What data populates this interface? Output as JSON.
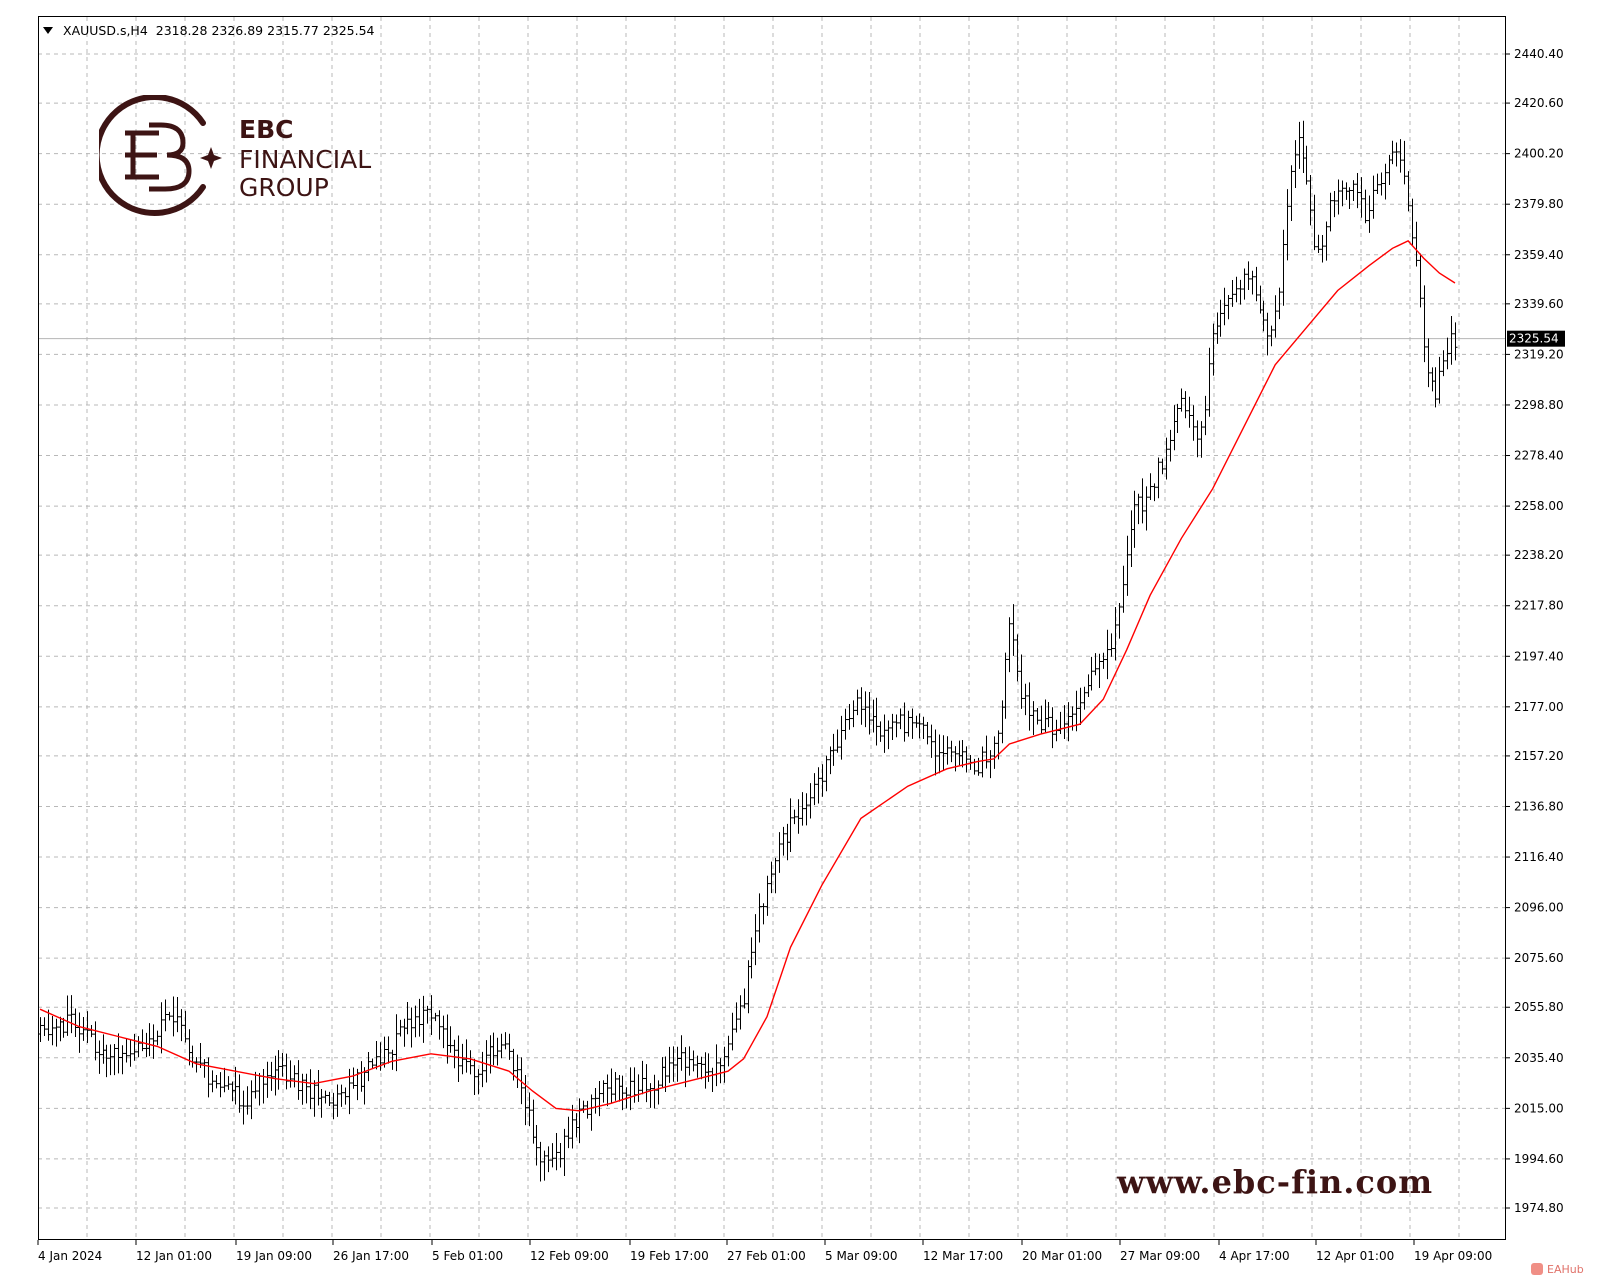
{
  "header": {
    "symbol": "XAUUSD.s,H4",
    "open": "2318.28",
    "high": "2326.89",
    "low": "2315.77",
    "close": "2325.54"
  },
  "logo": {
    "line1": "EBC",
    "line2": "FINANCIAL",
    "line3": "GROUP",
    "monogram": "EBC",
    "color": "#3d1414"
  },
  "website": "www.ebc-fin.com",
  "watermark": "EAHub",
  "colors": {
    "grid": "#b8b8b8",
    "bars": "#000000",
    "moving_average": "#ff0000",
    "price_line": "#b4b4b4",
    "brand": "#3d1414"
  },
  "chart_data": {
    "type": "ohlc",
    "timeframe": "H4",
    "ylim": [
      1974.8,
      2440.4
    ],
    "y_ticks": [
      "2440.40",
      "2420.60",
      "2400.20",
      "2379.80",
      "2359.40",
      "2339.60",
      "2319.20",
      "2298.80",
      "2278.40",
      "2258.00",
      "2238.20",
      "2217.80",
      "2197.40",
      "2177.00",
      "2157.20",
      "2136.80",
      "2116.40",
      "2096.00",
      "2075.60",
      "2055.80",
      "2035.40",
      "2015.00",
      "1994.60",
      "1974.80"
    ],
    "x_ticks": [
      "4 Jan 2024",
      "12 Jan 01:00",
      "19 Jan 09:00",
      "26 Jan 17:00",
      "5 Feb 01:00",
      "12 Feb 09:00",
      "19 Feb 17:00",
      "27 Feb 01:00",
      "5 Mar 09:00",
      "12 Mar 17:00",
      "20 Mar 01:00",
      "27 Mar 09:00",
      "4 Apr 17:00",
      "12 Apr 01:00",
      "19 Apr 09:00"
    ],
    "current_price": "2325.54",
    "close_path": [
      [
        0,
        2045
      ],
      [
        8,
        2050
      ],
      [
        16,
        2038
      ],
      [
        24,
        2035
      ],
      [
        28,
        2045
      ],
      [
        34,
        2052
      ],
      [
        38,
        2040
      ],
      [
        44,
        2025
      ],
      [
        48,
        2022
      ],
      [
        53,
        2018
      ],
      [
        56,
        2025
      ],
      [
        60,
        2030
      ],
      [
        66,
        2026
      ],
      [
        70,
        2022
      ],
      [
        76,
        2018
      ],
      [
        80,
        2025
      ],
      [
        84,
        2030
      ],
      [
        90,
        2040
      ],
      [
        94,
        2048
      ],
      [
        98,
        2052
      ],
      [
        102,
        2048
      ],
      [
        106,
        2035
      ],
      [
        110,
        2030
      ],
      [
        114,
        2035
      ],
      [
        118,
        2040
      ],
      [
        122,
        2030
      ],
      [
        124,
        2018
      ],
      [
        126,
        2005
      ],
      [
        128,
        1993
      ],
      [
        130,
        1992
      ],
      [
        133,
        1998
      ],
      [
        136,
        2008
      ],
      [
        140,
        2016
      ],
      [
        144,
        2022
      ],
      [
        148,
        2025
      ],
      [
        152,
        2022
      ],
      [
        156,
        2025
      ],
      [
        160,
        2030
      ],
      [
        164,
        2035
      ],
      [
        168,
        2033
      ],
      [
        172,
        2030
      ],
      [
        176,
        2038
      ],
      [
        178,
        2048
      ],
      [
        180,
        2060
      ],
      [
        182,
        2080
      ],
      [
        184,
        2095
      ],
      [
        188,
        2115
      ],
      [
        192,
        2130
      ],
      [
        196,
        2140
      ],
      [
        200,
        2150
      ],
      [
        204,
        2162
      ],
      [
        206,
        2172
      ],
      [
        208,
        2178
      ],
      [
        212,
        2175
      ],
      [
        216,
        2165
      ],
      [
        220,
        2170
      ],
      [
        224,
        2172
      ],
      [
        228,
        2160
      ],
      [
        232,
        2158
      ],
      [
        236,
        2155
      ],
      [
        240,
        2152
      ],
      [
        242,
        2158
      ],
      [
        244,
        2160
      ],
      [
        246,
        2175
      ],
      [
        248,
        2210
      ],
      [
        250,
        2190
      ],
      [
        252,
        2178
      ],
      [
        256,
        2170
      ],
      [
        260,
        2168
      ],
      [
        264,
        2175
      ],
      [
        268,
        2185
      ],
      [
        272,
        2195
      ],
      [
        274,
        2200
      ],
      [
        276,
        2215
      ],
      [
        278,
        2240
      ],
      [
        280,
        2258
      ],
      [
        284,
        2262
      ],
      [
        286,
        2272
      ],
      [
        288,
        2280
      ],
      [
        290,
        2295
      ],
      [
        292,
        2300
      ],
      [
        294,
        2292
      ],
      [
        296,
        2285
      ],
      [
        298,
        2300
      ],
      [
        300,
        2325
      ],
      [
        302,
        2335
      ],
      [
        305,
        2345
      ],
      [
        308,
        2350
      ],
      [
        311,
        2345
      ],
      [
        314,
        2330
      ],
      [
        316,
        2335
      ],
      [
        318,
        2360
      ],
      [
        320,
        2395
      ],
      [
        322,
        2410
      ],
      [
        324,
        2390
      ],
      [
        326,
        2365
      ],
      [
        328,
        2360
      ],
      [
        330,
        2378
      ],
      [
        333,
        2390
      ],
      [
        336,
        2385
      ],
      [
        339,
        2375
      ],
      [
        342,
        2385
      ],
      [
        345,
        2395
      ],
      [
        347,
        2400
      ],
      [
        349,
        2390
      ],
      [
        351,
        2370
      ],
      [
        353,
        2340
      ],
      [
        355,
        2310
      ],
      [
        357,
        2305
      ],
      [
        359,
        2320
      ],
      [
        361,
        2325
      ],
      [
        362,
        2323
      ]
    ],
    "moving_average": [
      [
        0,
        2055
      ],
      [
        10,
        2048
      ],
      [
        20,
        2044
      ],
      [
        30,
        2040
      ],
      [
        40,
        2033
      ],
      [
        50,
        2030
      ],
      [
        60,
        2027
      ],
      [
        70,
        2025
      ],
      [
        80,
        2028
      ],
      [
        90,
        2034
      ],
      [
        100,
        2037
      ],
      [
        110,
        2035
      ],
      [
        120,
        2030
      ],
      [
        126,
        2022
      ],
      [
        132,
        2015
      ],
      [
        138,
        2014
      ],
      [
        146,
        2017
      ],
      [
        156,
        2022
      ],
      [
        166,
        2026
      ],
      [
        176,
        2030
      ],
      [
        180,
        2035
      ],
      [
        186,
        2052
      ],
      [
        192,
        2080
      ],
      [
        200,
        2105
      ],
      [
        210,
        2132
      ],
      [
        222,
        2145
      ],
      [
        232,
        2152
      ],
      [
        240,
        2155
      ],
      [
        244,
        2156
      ],
      [
        248,
        2162
      ],
      [
        256,
        2166
      ],
      [
        266,
        2170
      ],
      [
        272,
        2180
      ],
      [
        278,
        2200
      ],
      [
        284,
        2222
      ],
      [
        292,
        2245
      ],
      [
        300,
        2265
      ],
      [
        308,
        2290
      ],
      [
        316,
        2315
      ],
      [
        324,
        2330
      ],
      [
        332,
        2345
      ],
      [
        340,
        2355
      ],
      [
        346,
        2362
      ],
      [
        350,
        2365
      ],
      [
        354,
        2358
      ],
      [
        358,
        2352
      ],
      [
        362,
        2348
      ]
    ]
  }
}
